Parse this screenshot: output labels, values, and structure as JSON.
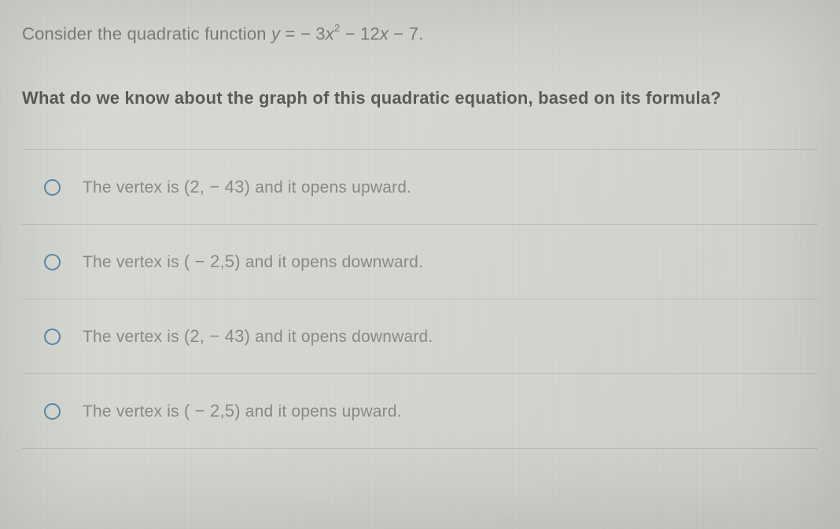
{
  "intro": {
    "prefix": "Consider the quadratic function ",
    "eq_lhs": "y",
    "eq_eq": " = ",
    "eq_coef1": "− 3",
    "eq_var1": "x",
    "eq_exp": "2",
    "eq_rest": " − 12",
    "eq_var2": "x",
    "eq_tail": " − 7."
  },
  "question": "What do we know about the graph of this quadratic equation, based on its formula?",
  "options": [
    {
      "pre": "The vertex is ",
      "coords": "(2, − 43)",
      "post": " and it opens upward."
    },
    {
      "pre": "The vertex is ",
      "coords": "( − 2,5)",
      "post": " and it opens downward."
    },
    {
      "pre": "The vertex is ",
      "coords": "(2, − 43)",
      "post": " and it opens downward."
    },
    {
      "pre": "The vertex is ",
      "coords": "( − 2,5)",
      "post": " and it opens upward."
    }
  ],
  "colors": {
    "text_muted": "#7c8079",
    "text_question": "#5a5d57",
    "text_option": "#888b83",
    "radio_border": "#5a8aa8",
    "divider": "rgba(150,150,145,0.35)",
    "background": "#d4d6d0"
  },
  "typography": {
    "body_fontsize": 22,
    "option_fontsize": 21,
    "sup_fontsize": 13,
    "question_weight": 700
  }
}
